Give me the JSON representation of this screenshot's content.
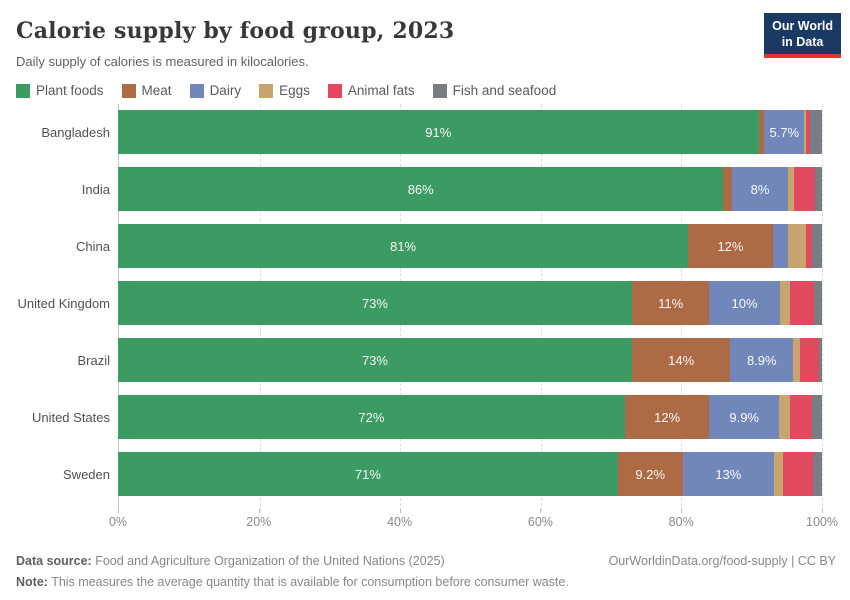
{
  "header": {
    "title": "Calorie supply by food group, 2023",
    "subtitle": "Daily supply of calories is measured in kilocalories.",
    "logo": {
      "line1": "Our World",
      "line2": "in Data",
      "bg_color": "#1a3a63",
      "accent_color": "#e0362c"
    }
  },
  "chart_data": {
    "type": "bar",
    "stacked": true,
    "orientation": "horizontal",
    "legend_position": "top",
    "grid": true,
    "xlim": [
      0,
      100
    ],
    "ticks": [
      "0%",
      "20%",
      "40%",
      "60%",
      "80%",
      "100%"
    ],
    "tick_values": [
      0,
      20,
      40,
      60,
      80,
      100
    ],
    "categories": [
      "Bangladesh",
      "India",
      "China",
      "United Kingdom",
      "Brazil",
      "United States",
      "Sweden"
    ],
    "series": [
      {
        "name": "Plant foods",
        "color": "#3b9b62",
        "values": [
          91,
          86,
          81,
          73,
          73,
          72,
          71
        ]
      },
      {
        "name": "Meat",
        "color": "#ac6b44",
        "values": [
          0.8,
          1.2,
          12,
          11,
          14,
          12,
          9.2
        ]
      },
      {
        "name": "Dairy",
        "color": "#7187ba",
        "values": [
          5.7,
          8,
          2.2,
          10,
          8.9,
          9.9,
          13
        ]
      },
      {
        "name": "Eggs",
        "color": "#c8a46f",
        "values": [
          0.3,
          0.8,
          2.6,
          1.4,
          1.0,
          1.5,
          1.2
        ]
      },
      {
        "name": "Animal fats",
        "color": "#e2485e",
        "values": [
          0.5,
          3.0,
          0.8,
          3.4,
          2.7,
          3.2,
          4.3
        ]
      },
      {
        "name": "Fish and seafood",
        "color": "#767d85",
        "values": [
          1.7,
          1.0,
          1.4,
          1.2,
          0.4,
          1.4,
          1.3
        ]
      }
    ],
    "shown_segment_labels": [
      "91%",
      "5.7%",
      "86%",
      "8%",
      "81%",
      "12%",
      "73%",
      "11%",
      "10%",
      "73%",
      "14%",
      "8.9%",
      "72%",
      "12%",
      "9.9%",
      "71%",
      "9.2%",
      "13%"
    ]
  },
  "footer": {
    "datasource_label": "Data source:",
    "datasource_text": " Food and Agriculture Organization of the United Nations (2025)",
    "credit": "OurWorldinData.org/food-supply | CC BY",
    "note_label": "Note:",
    "note_text": " This measures the average quantity that is available for consumption before consumer waste."
  }
}
